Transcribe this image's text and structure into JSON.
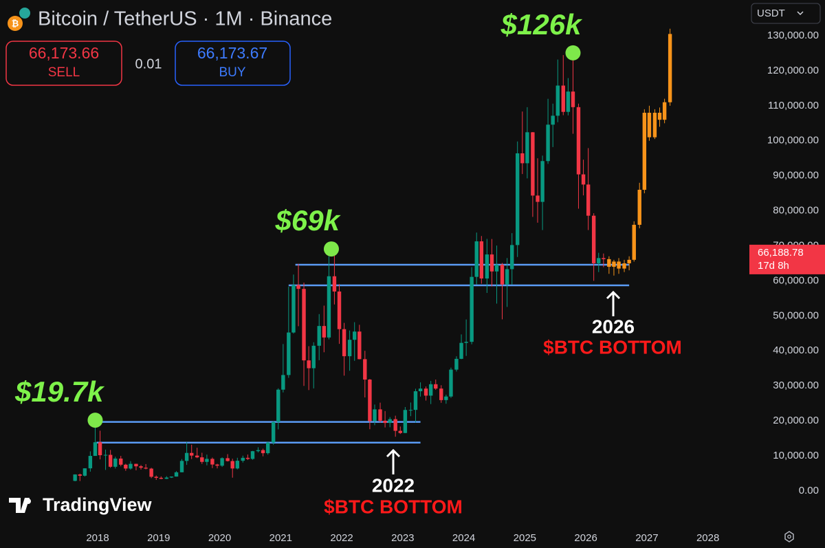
{
  "header": {
    "symbol": "Bitcoin / TetherUS · 1M · Binance",
    "sell_price": "66,173.66",
    "sell_label": "SELL",
    "spread": "0.01",
    "buy_price": "66,173.67",
    "buy_label": "BUY",
    "currency": "USDT",
    "logo": "TradingView"
  },
  "bottoms": [
    {
      "year": "2022",
      "label": "$BTC BOTTOM"
    },
    {
      "year": "2026",
      "label": "$BTC BOTTOM"
    }
  ],
  "chart_data": {
    "type": "candlestick",
    "xlim": [
      2016.4,
      2028.68
    ],
    "xticks": [
      2018,
      2019,
      2020,
      2021,
      2022,
      2023,
      2024,
      2025,
      2026,
      2027,
      2028
    ],
    "ylim": [
      -11000,
      140200
    ],
    "yticks": [
      {
        "value": 0,
        "label": "0.00"
      },
      {
        "value": 10000,
        "label": "10,000.00"
      },
      {
        "value": 20000,
        "label": "20,000.00"
      },
      {
        "value": 30000,
        "label": "30,000.00"
      },
      {
        "value": 40000,
        "label": "40,000.00"
      },
      {
        "value": 50000,
        "label": "50,000.00"
      },
      {
        "value": 60000,
        "label": "60,000.00"
      },
      {
        "value": 70000,
        "label": "70,000.00"
      },
      {
        "value": 80000,
        "label": "80,000.00"
      },
      {
        "value": 90000,
        "label": "90,000.00"
      },
      {
        "value": 100000,
        "label": "100,000.00"
      },
      {
        "value": 110000,
        "label": "110,000.00"
      },
      {
        "value": 120000,
        "label": "120,000.00"
      },
      {
        "value": 130000,
        "label": "130,000.00"
      }
    ],
    "grid": false,
    "last_price": {
      "value": 66188.78,
      "label": "66,188.78"
    },
    "countdown": "17d 8h",
    "last_price_color": "#f23645",
    "series": [
      {
        "up_color": "#089981",
        "down_color": "#f23645",
        "x": [
          2017.63,
          2017.71,
          2017.79,
          2017.88,
          2017.96,
          2018.04,
          2018.13,
          2018.21,
          2018.29,
          2018.38,
          2018.46,
          2018.54,
          2018.63,
          2018.71,
          2018.79,
          2018.88,
          2018.96,
          2019.04,
          2019.13,
          2019.21,
          2019.29,
          2019.38,
          2019.46,
          2019.54,
          2019.63,
          2019.71,
          2019.79,
          2019.88,
          2019.96,
          2020.04,
          2020.13,
          2020.21,
          2020.29,
          2020.38,
          2020.46,
          2020.54,
          2020.63,
          2020.71,
          2020.79,
          2020.88,
          2020.96,
          2021.04,
          2021.13,
          2021.21,
          2021.29,
          2021.38,
          2021.46,
          2021.54,
          2021.63,
          2021.71,
          2021.79,
          2021.88,
          2021.96,
          2022.04,
          2022.13,
          2022.21,
          2022.29,
          2022.38,
          2022.46,
          2022.54,
          2022.63,
          2022.71,
          2022.79,
          2022.88,
          2022.96,
          2023.04,
          2023.13,
          2023.21,
          2023.29,
          2023.38,
          2023.46,
          2023.54,
          2023.63,
          2023.71,
          2023.79,
          2023.88,
          2023.96,
          2024.04,
          2024.13,
          2024.21,
          2024.29,
          2024.38,
          2024.46,
          2024.54,
          2024.63,
          2024.71,
          2024.79,
          2024.88,
          2024.96,
          2025.04,
          2025.13,
          2025.21,
          2025.29,
          2025.38,
          2025.46,
          2025.54,
          2025.63,
          2025.71,
          2025.79,
          2025.88,
          2025.96,
          2026.04,
          2026.13,
          2026.21,
          2026.29
        ],
        "open": [
          2870,
          4700,
          4340,
          6450,
          10000,
          13900,
          10200,
          10300,
          6900,
          9240,
          7490,
          6390,
          7730,
          7030,
          6630,
          6370,
          4040,
          3740,
          3460,
          3820,
          4100,
          5320,
          8570,
          10850,
          10090,
          9590,
          8290,
          9150,
          7540,
          7200,
          9350,
          8530,
          6410,
          8620,
          9450,
          9140,
          11350,
          11650,
          10780,
          13800,
          19700,
          28920,
          33100,
          45240,
          58800,
          57700,
          37280,
          35040,
          41460,
          47100,
          43820,
          61300,
          56950,
          46200,
          38470,
          43160,
          45510,
          37630,
          31800,
          19940,
          23290,
          20050,
          19420,
          20490,
          17160,
          16540,
          23120,
          23140,
          28470,
          29230,
          27210,
          30470,
          29230,
          25940,
          26960,
          34640,
          37720,
          42280,
          42580,
          61130,
          71280,
          60670,
          67530,
          62680,
          64630,
          58970,
          63330,
          70220,
          96410,
          93580,
          102430,
          84350,
          82550,
          94200,
          104600,
          107150,
          115760,
          108250,
          114050,
          109600,
          90400,
          87500,
          78600,
          65000,
          66500
        ],
        "high": [
          4750,
          4940,
          6480,
          11300,
          19700,
          17200,
          11800,
          11700,
          9770,
          10000,
          7760,
          8500,
          7770,
          7400,
          7670,
          6600,
          4400,
          4140,
          4200,
          4120,
          5650,
          9100,
          13970,
          13200,
          12330,
          10900,
          10370,
          9530,
          7750,
          9580,
          10500,
          9190,
          9470,
          10070,
          10390,
          11440,
          12470,
          12070,
          14100,
          19860,
          29300,
          41950,
          58350,
          61790,
          64850,
          59500,
          41330,
          42450,
          50500,
          52920,
          67000,
          69000,
          59050,
          47990,
          45820,
          48190,
          47440,
          40020,
          31980,
          24670,
          25210,
          22800,
          21080,
          21480,
          18390,
          23960,
          25250,
          29180,
          31000,
          29820,
          31430,
          31800,
          30180,
          27480,
          35200,
          38450,
          44700,
          48970,
          63900,
          73780,
          72800,
          71980,
          71950,
          70080,
          65100,
          66500,
          73620,
          99800,
          108350,
          109590,
          102500,
          95000,
          95760,
          111980,
          110600,
          123200,
          124470,
          117900,
          126200,
          110600,
          94600,
          97900,
          79300,
          68000,
          67800
        ],
        "low": [
          2750,
          2820,
          4110,
          5500,
          10400,
          9000,
          6000,
          6600,
          6400,
          7030,
          5750,
          6070,
          5880,
          6100,
          6170,
          3650,
          3150,
          3350,
          3380,
          3700,
          4080,
          5300,
          7440,
          9100,
          9360,
          7710,
          7300,
          6520,
          6430,
          6850,
          8400,
          3780,
          6150,
          8110,
          8830,
          8900,
          10990,
          9880,
          10370,
          13200,
          17570,
          28130,
          32300,
          44950,
          47040,
          30000,
          28800,
          29280,
          37330,
          39600,
          43280,
          53250,
          42000,
          32920,
          34320,
          37150,
          37580,
          26700,
          17620,
          18780,
          19520,
          18130,
          18190,
          15480,
          16260,
          16500,
          21350,
          19550,
          26940,
          25810,
          24800,
          28860,
          25170,
          24900,
          26560,
          34100,
          37630,
          38550,
          41880,
          59000,
          59190,
          56550,
          58400,
          53490,
          49000,
          52550,
          58900,
          66800,
          90500,
          89260,
          78260,
          76600,
          74500,
          93400,
          98200,
          105300,
          107300,
          107250,
          102000,
          80600,
          84400,
          74500,
          60000,
          62500,
          63900
        ],
        "close": [
          4700,
          4340,
          6450,
          10000,
          13900,
          10200,
          10300,
          6900,
          9240,
          7490,
          6390,
          7730,
          7030,
          6630,
          6370,
          4040,
          3740,
          3460,
          3820,
          4100,
          5320,
          8570,
          10850,
          10090,
          9590,
          8290,
          9150,
          7540,
          7200,
          9350,
          8530,
          6410,
          8620,
          9450,
          9140,
          11350,
          11650,
          10780,
          13800,
          19700,
          28920,
          33100,
          45240,
          58800,
          57700,
          37280,
          35040,
          41460,
          47100,
          43820,
          61300,
          56950,
          46200,
          38470,
          43160,
          45510,
          37630,
          31800,
          19940,
          23290,
          20050,
          19420,
          20490,
          17160,
          16540,
          23120,
          23140,
          28470,
          29230,
          27210,
          30470,
          29230,
          25940,
          26960,
          34640,
          37720,
          42280,
          42580,
          61130,
          71280,
          60670,
          67530,
          62680,
          64630,
          58970,
          63330,
          70220,
          96410,
          93580,
          102430,
          84350,
          82550,
          94200,
          104600,
          107150,
          115760,
          108250,
          114050,
          109600,
          90400,
          87500,
          78600,
          65000,
          66500,
          66188.78
        ]
      },
      {
        "up_color": "#f7931a",
        "down_color": "#f7931a",
        "x": [
          2026.38,
          2026.46,
          2026.54,
          2026.63,
          2026.71,
          2026.79,
          2026.88,
          2026.96,
          2027.04,
          2027.13,
          2027.21,
          2027.29,
          2027.38
        ],
        "open": [
          66190,
          64000,
          65500,
          63500,
          65000,
          66000,
          76000,
          86000,
          108000,
          101000,
          108000,
          106000,
          111000
        ],
        "high": [
          67000,
          66000,
          66500,
          66000,
          67000,
          77000,
          88000,
          109000,
          110000,
          109000,
          109500,
          112000,
          132000
        ],
        "low": [
          62000,
          61500,
          62000,
          62500,
          63000,
          65500,
          75000,
          85000,
          100000,
          100500,
          104000,
          105000,
          110000
        ],
        "close": [
          64000,
          65500,
          63500,
          65000,
          66000,
          76000,
          86000,
          108000,
          101000,
          108000,
          106000,
          111000,
          130500
        ]
      }
    ],
    "hlines": [
      {
        "value": 19700,
        "x": [
          2017.98,
          2023.29
        ],
        "color": "#5b9cf6"
      },
      {
        "value": 13800,
        "x": [
          2017.98,
          2023.29
        ],
        "color": "#5b9cf6"
      },
      {
        "value": 64600,
        "x": [
          2021.24,
          2026.71
        ],
        "color": "#5b9cf6"
      },
      {
        "value": 58700,
        "x": [
          2021.13,
          2026.71
        ],
        "color": "#5b9cf6"
      }
    ],
    "annotations": [
      {
        "text": "$19.7k",
        "x": 2017.96,
        "y": 20200,
        "color": "#7ee84a"
      },
      {
        "text": "$69k",
        "x": 2021.83,
        "y": 69100,
        "color": "#7ee84a"
      },
      {
        "text": "$126k",
        "x": 2025.79,
        "y": 125100,
        "color": "#7ee84a"
      }
    ]
  }
}
